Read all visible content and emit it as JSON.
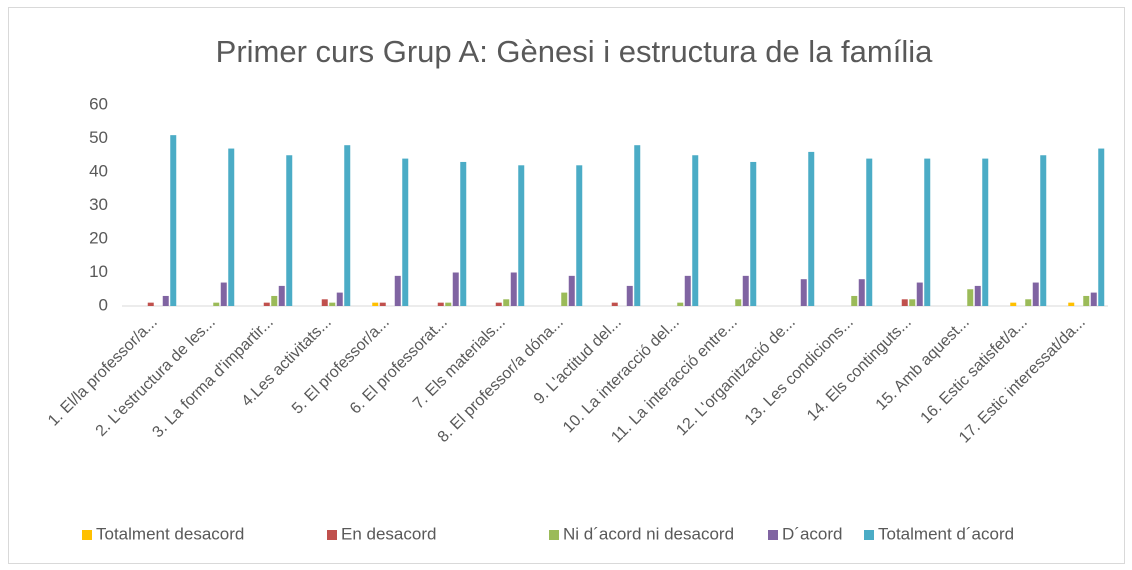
{
  "chart_data": {
    "type": "bar",
    "title": "Primer curs Grup A: Gènesi i estructura de la família",
    "categories": [
      "1. El/la professor/a...",
      "2. L'estructura de les...",
      "3. La forma d'impartir...",
      "4.Les activitats...",
      "5. El professor/a...",
      "6. El professorat...",
      "7. Els materials...",
      "8. El professor/a dóna...",
      "9. L'actitud del...",
      "10. La interacció del...",
      "11. La interacció entre...",
      "12. L'organització de...",
      "13. Les condicions...",
      "14. Els continguts...",
      "15. Amb aquest...",
      "16. Estic satisfet/a...",
      "17. Estic interessat/da..."
    ],
    "series": [
      {
        "name": "Totalment desacord",
        "color": "#ffc000",
        "values": [
          0,
          0,
          0,
          0,
          1,
          0,
          0,
          0,
          0,
          0,
          0,
          0,
          0,
          0,
          0,
          1,
          1
        ]
      },
      {
        "name": "En desacord",
        "color": "#c0504d",
        "values": [
          1,
          0,
          1,
          2,
          1,
          1,
          1,
          0,
          1,
          0,
          0,
          0,
          0,
          2,
          0,
          0,
          0
        ]
      },
      {
        "name": "Ni d´acord ni desacord",
        "color": "#9bbb59",
        "values": [
          0,
          1,
          3,
          1,
          0,
          1,
          2,
          4,
          0,
          1,
          2,
          0,
          3,
          2,
          5,
          2,
          3
        ]
      },
      {
        "name": "D´acord",
        "color": "#8064a2",
        "values": [
          3,
          7,
          6,
          4,
          9,
          10,
          10,
          9,
          6,
          9,
          9,
          8,
          8,
          7,
          6,
          7,
          4
        ]
      },
      {
        "name": "Totalment  d´acord",
        "color": "#4bacc6",
        "values": [
          51,
          47,
          45,
          48,
          44,
          43,
          42,
          42,
          48,
          45,
          43,
          46,
          44,
          44,
          44,
          45,
          47
        ]
      }
    ],
    "ylim": [
      0,
      60
    ],
    "yticks": [
      0,
      10,
      20,
      30,
      40,
      50,
      60
    ],
    "grid": false,
    "legend": "bottom"
  }
}
